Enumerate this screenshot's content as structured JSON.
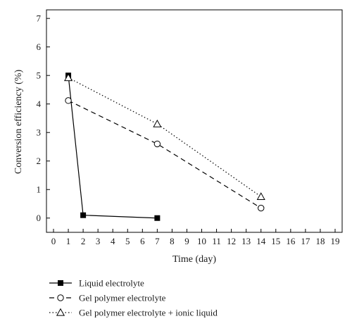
{
  "chart_data": {
    "type": "line",
    "xlabel": "Time (day)",
    "ylabel": "Conversion efficiency (%)",
    "xlim": [
      0,
      19
    ],
    "ylim": [
      -0.5,
      7.3
    ],
    "xticks": [
      "0",
      "1",
      "2",
      "3",
      "4",
      "5",
      "6",
      "7",
      "8",
      "9",
      "10",
      "11",
      "12",
      "13",
      "14",
      "15",
      "16",
      "17",
      "18",
      "19"
    ],
    "yticks": [
      "0",
      "1",
      "2",
      "3",
      "4",
      "5",
      "6",
      "7"
    ],
    "grid": false,
    "legend_position": "below",
    "series": [
      {
        "name": "Liquid electrolyte",
        "line_style": "solid",
        "marker": "filled-square",
        "color": "#000000",
        "points": [
          [
            1,
            5.0
          ],
          [
            2,
            0.1
          ],
          [
            7,
            0.0
          ]
        ]
      },
      {
        "name": "Gel polymer electrolyte",
        "line_style": "dashed",
        "marker": "open-circle",
        "color": "#000000",
        "points": [
          [
            1,
            4.12
          ],
          [
            7,
            2.6
          ],
          [
            14,
            0.35
          ]
        ]
      },
      {
        "name": "Gel polymer electrolyte + ionic liquid",
        "line_style": "dotted",
        "marker": "open-triangle",
        "color": "#000000",
        "points": [
          [
            1,
            4.92
          ],
          [
            7,
            3.3
          ],
          [
            14,
            0.75
          ]
        ]
      }
    ]
  }
}
